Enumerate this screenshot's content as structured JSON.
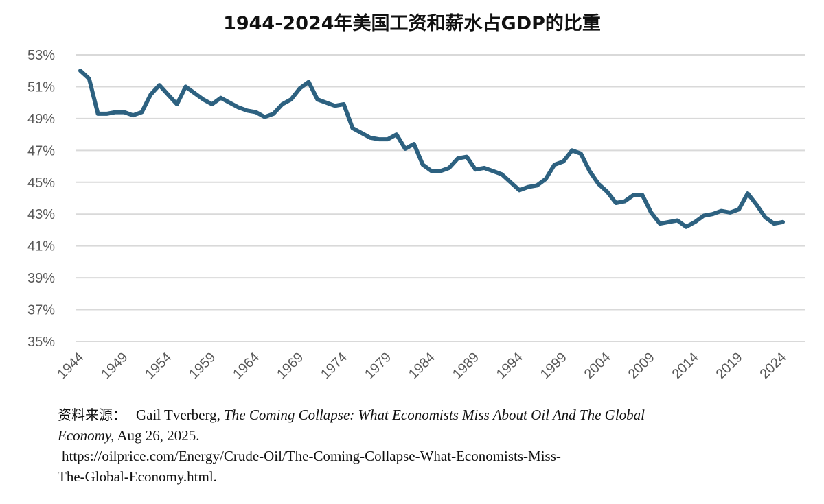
{
  "chart_data": {
    "type": "line",
    "title": "1944-2024年美国工资和薪水占GDP的比重",
    "xlabel": "",
    "ylabel": "",
    "ylim": [
      35,
      53
    ],
    "y_ticks": [
      "35%",
      "37%",
      "39%",
      "41%",
      "43%",
      "45%",
      "47%",
      "49%",
      "51%",
      "53%"
    ],
    "x_ticks": [
      "1944",
      "1949",
      "1954",
      "1959",
      "1964",
      "1969",
      "1974",
      "1979",
      "1984",
      "1989",
      "1994",
      "1999",
      "2004",
      "2009",
      "2014",
      "2019",
      "2024"
    ],
    "grid": true,
    "legend": "none",
    "line_color": "#2d6180",
    "series": [
      {
        "x": [
          1944,
          1945,
          1946,
          1947,
          1948,
          1949,
          1950,
          1951,
          1952,
          1953,
          1954,
          1955,
          1956,
          1957,
          1958,
          1959,
          1960,
          1961,
          1962,
          1963,
          1964,
          1965,
          1966,
          1967,
          1968,
          1969,
          1970,
          1971,
          1972,
          1973,
          1974,
          1975,
          1976,
          1977,
          1978,
          1979,
          1980,
          1981,
          1982,
          1983,
          1984,
          1985,
          1986,
          1987,
          1988,
          1989,
          1990,
          1991,
          1992,
          1993,
          1994,
          1995,
          1996,
          1997,
          1998,
          1999,
          2000,
          2001,
          2002,
          2003,
          2004,
          2005,
          2006,
          2007,
          2008,
          2009,
          2010,
          2011,
          2012,
          2013,
          2014,
          2015,
          2016,
          2017,
          2018,
          2019,
          2020,
          2021,
          2022,
          2023,
          2024
        ],
        "values": [
          52.0,
          51.5,
          49.3,
          49.3,
          49.4,
          49.4,
          49.2,
          49.4,
          50.5,
          51.1,
          50.5,
          49.9,
          51.0,
          50.6,
          50.2,
          49.9,
          50.3,
          50.0,
          49.7,
          49.5,
          49.4,
          49.1,
          49.3,
          49.9,
          50.2,
          50.9,
          51.3,
          50.2,
          50.0,
          49.8,
          49.9,
          48.4,
          48.1,
          47.8,
          47.7,
          47.7,
          48.0,
          47.1,
          47.4,
          46.1,
          45.7,
          45.7,
          45.9,
          46.5,
          46.6,
          45.8,
          45.9,
          45.7,
          45.5,
          45.0,
          44.5,
          44.7,
          44.8,
          45.2,
          46.1,
          46.3,
          47.0,
          46.8,
          45.7,
          44.9,
          44.4,
          43.7,
          43.8,
          44.2,
          44.2,
          43.1,
          42.4,
          42.5,
          42.6,
          42.2,
          42.5,
          42.9,
          43.0,
          43.2,
          43.1,
          43.3,
          44.3,
          43.6,
          42.8,
          42.4,
          42.5
        ]
      }
    ]
  },
  "source": {
    "label": "资料来源：",
    "author": "Gail Tverberg,",
    "title_part1": "The Coming Collapse: What Economists Miss About Oil And The Global",
    "title_part2": "Economy,",
    "date": "Aug 26, 2025.",
    "url_line1": "https://oilprice.com/Energy/Crude-Oil/The-Coming-Collapse-What-Economists-Miss-",
    "url_line2": "The-Global-Economy.html."
  }
}
